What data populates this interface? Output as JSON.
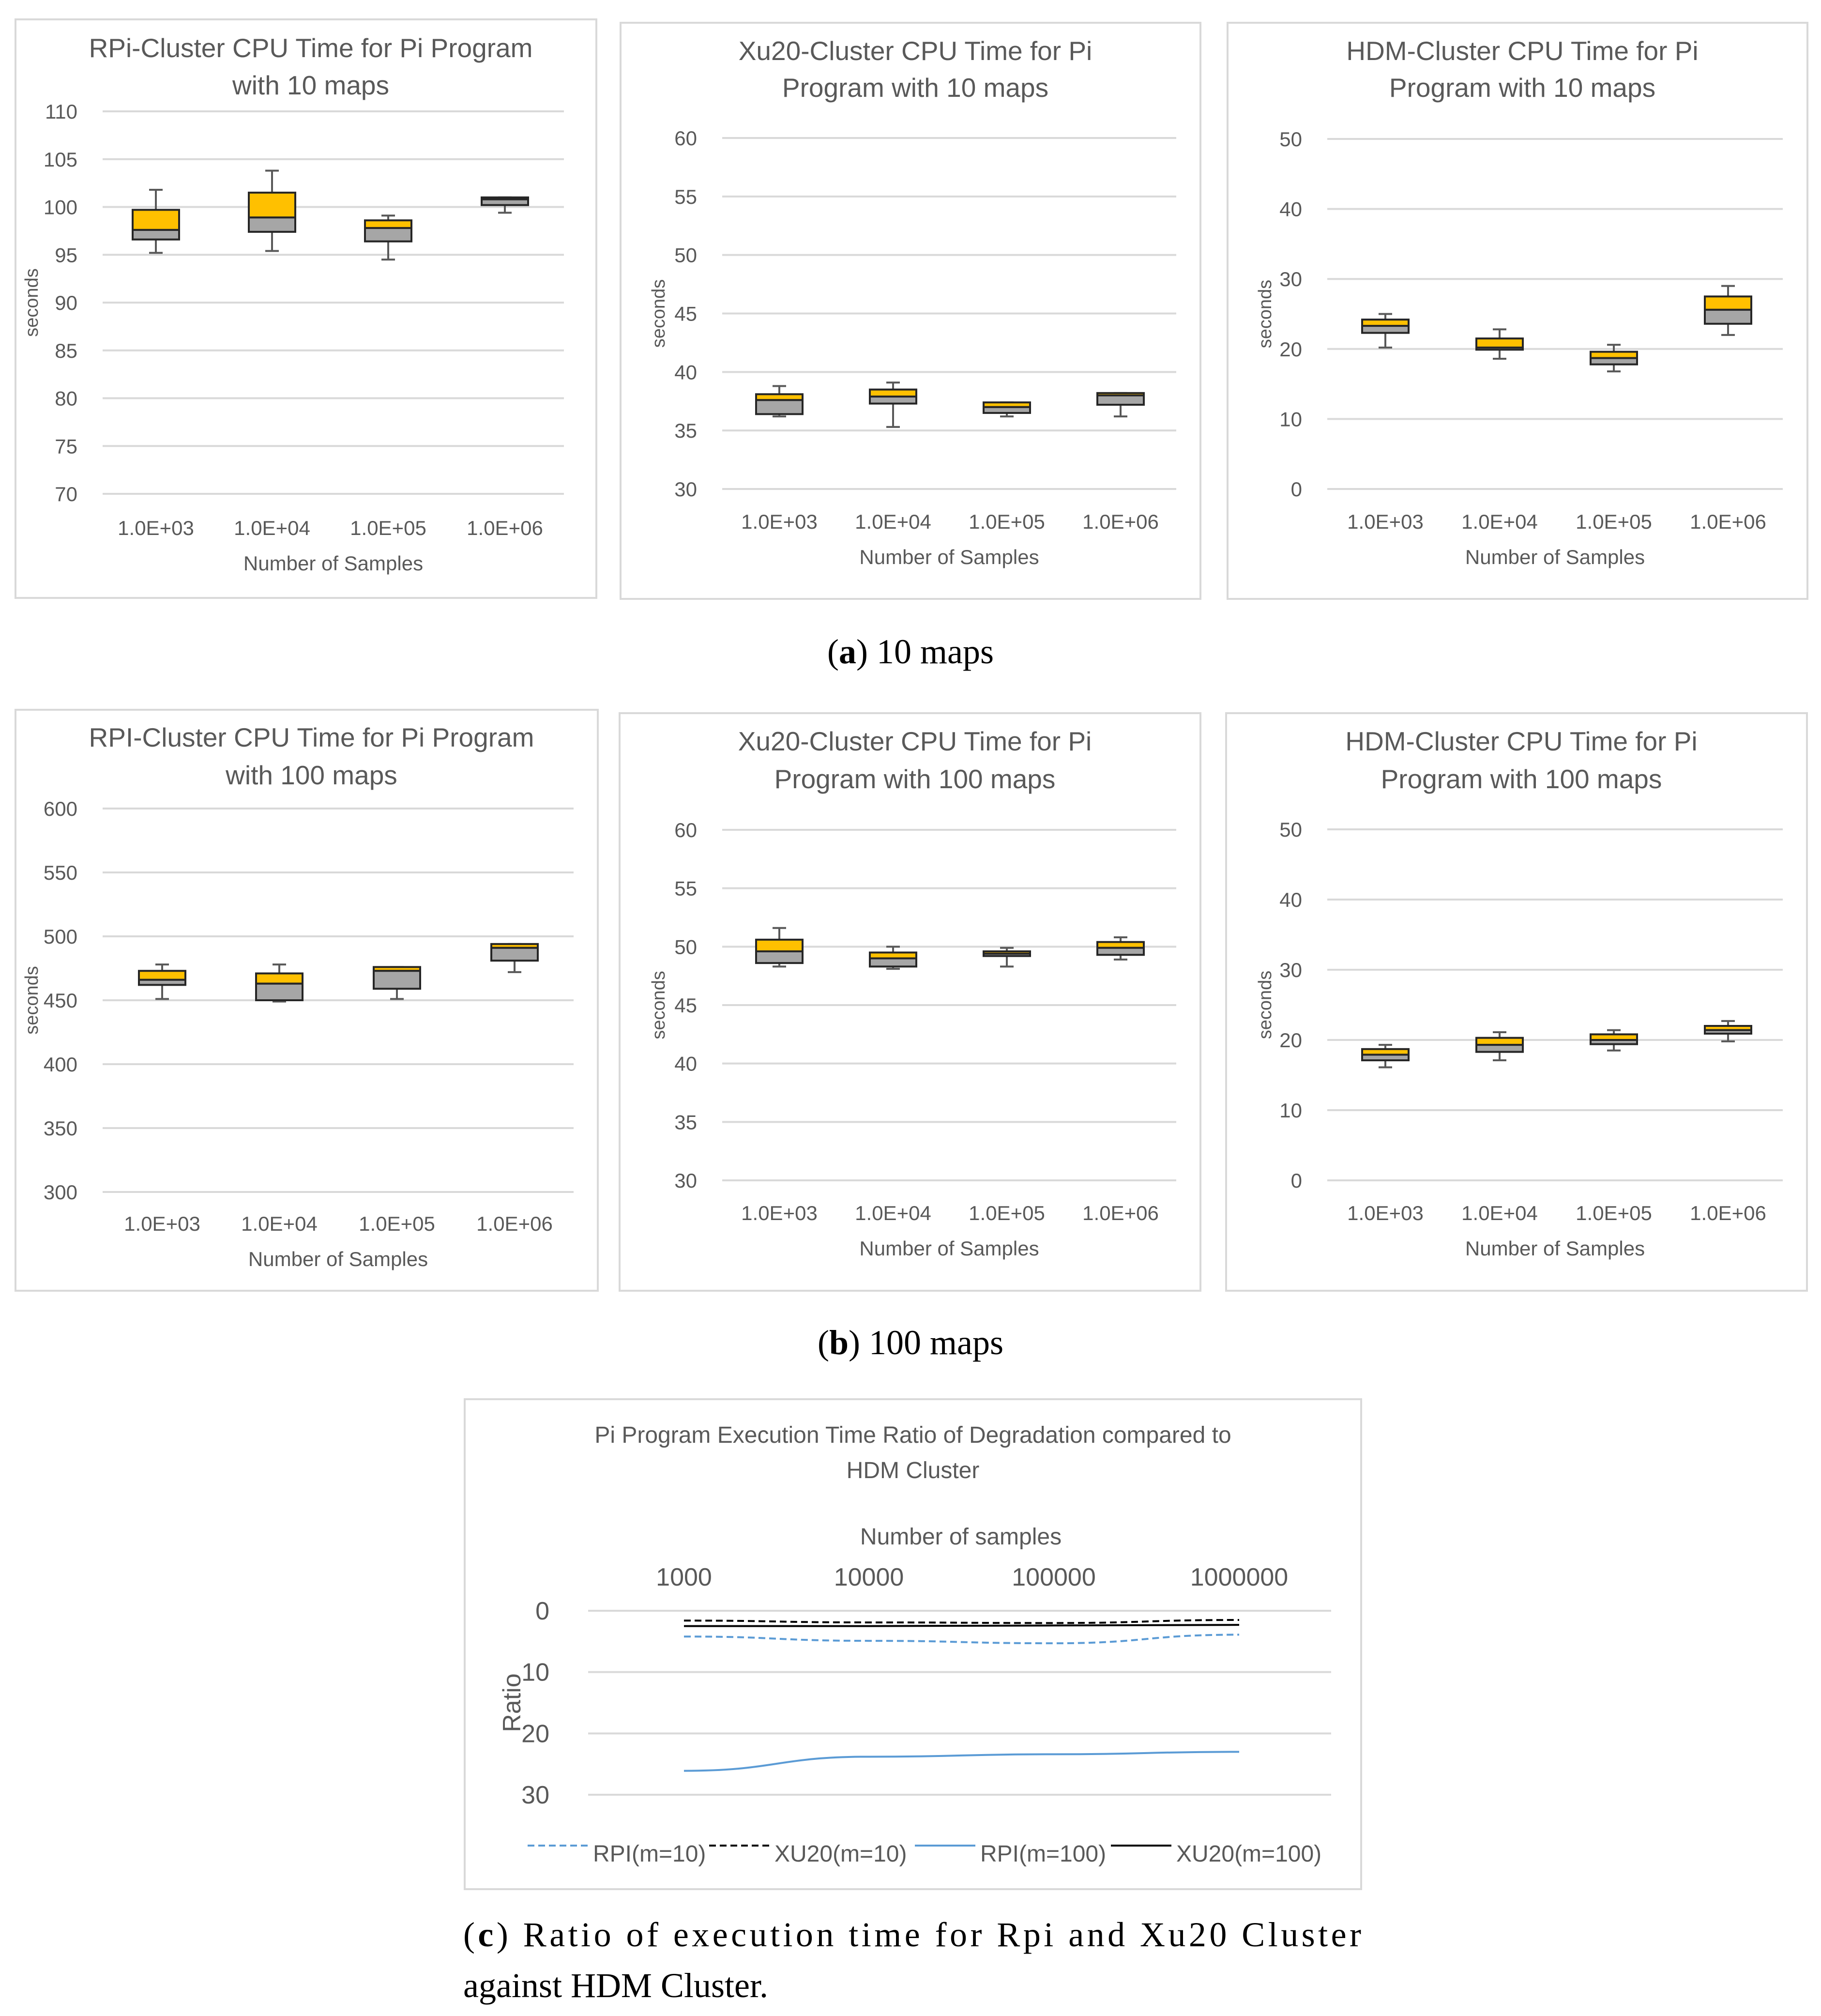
{
  "colors": {
    "q3_box": "#FFC000",
    "q2_box": "#A6A6A6",
    "whisker": "#595959",
    "grid": "#D9D9D9",
    "text": "#595959",
    "panel_border": "#D9D9D9",
    "rpi_line": "#5B9BD5",
    "xu20_line": "#000000"
  },
  "captions": {
    "a": {
      "letter": "a",
      "text": " 10 maps"
    },
    "b": {
      "letter": "b",
      "text": " 100 maps"
    },
    "c": {
      "letter": "c",
      "line1": " Ratio of execution time for Rpi and Xu20 Cluster",
      "line2": "against HDM Cluster."
    }
  },
  "chart_data": [
    {
      "id": "rpi10",
      "type": "box",
      "title": [
        "RPi-Cluster CPU Time for Pi Program",
        "with 10 maps"
      ],
      "xlabel": "Number of Samples",
      "ylabel": "seconds",
      "ylim": [
        70,
        110
      ],
      "yticks": [
        70,
        75,
        80,
        85,
        90,
        95,
        100,
        105,
        110
      ],
      "categories": [
        "1.0E+03",
        "1.0E+04",
        "1.0E+05",
        "1.0E+06"
      ],
      "boxes": [
        {
          "min": 95.2,
          "q1": 96.6,
          "median": 97.6,
          "q3": 99.7,
          "max": 101.8
        },
        {
          "min": 95.4,
          "q1": 97.4,
          "median": 98.9,
          "q3": 101.5,
          "max": 103.8
        },
        {
          "min": 94.5,
          "q1": 96.4,
          "median": 97.8,
          "q3": 98.6,
          "max": 99.1
        },
        {
          "min": 99.4,
          "q1": 100.2,
          "median": 100.8,
          "q3": 101.0,
          "max": 101.0
        }
      ]
    },
    {
      "id": "xu10",
      "type": "box",
      "title": [
        "Xu20-Cluster CPU Time for Pi",
        "Program with 10 maps"
      ],
      "xlabel": "Number of Samples",
      "ylabel": "seconds",
      "ylim": [
        30,
        60
      ],
      "yticks": [
        30,
        35,
        40,
        45,
        50,
        55,
        60
      ],
      "categories": [
        "1.0E+03",
        "1.0E+04",
        "1.0E+05",
        "1.0E+06"
      ],
      "boxes": [
        {
          "min": 36.2,
          "q1": 36.4,
          "median": 37.6,
          "q3": 38.1,
          "max": 38.8
        },
        {
          "min": 35.3,
          "q1": 37.3,
          "median": 37.9,
          "q3": 38.5,
          "max": 39.1
        },
        {
          "min": 36.2,
          "q1": 36.5,
          "median": 37.0,
          "q3": 37.4,
          "max": 37.4
        },
        {
          "min": 36.2,
          "q1": 37.2,
          "median": 38.0,
          "q3": 38.2,
          "max": 38.2
        }
      ]
    },
    {
      "id": "hdm10",
      "type": "box",
      "title": [
        "HDM-Cluster CPU Time for Pi",
        "Program with 10 maps"
      ],
      "xlabel": "Number of Samples",
      "ylabel": "seconds",
      "ylim": [
        0,
        50
      ],
      "yticks": [
        0,
        10,
        20,
        30,
        40,
        50
      ],
      "categories": [
        "1.0E+03",
        "1.0E+04",
        "1.0E+05",
        "1.0E+06"
      ],
      "boxes": [
        {
          "min": 20.2,
          "q1": 22.3,
          "median": 23.3,
          "q3": 24.2,
          "max": 25.0
        },
        {
          "min": 18.6,
          "q1": 19.9,
          "median": 20.2,
          "q3": 21.5,
          "max": 22.8
        },
        {
          "min": 16.8,
          "q1": 17.8,
          "median": 18.7,
          "q3": 19.6,
          "max": 20.6
        },
        {
          "min": 22.0,
          "q1": 23.6,
          "median": 25.6,
          "q3": 27.5,
          "max": 29.0
        }
      ]
    },
    {
      "id": "rpi100",
      "type": "box",
      "title": [
        "RPI-Cluster CPU Time for Pi Program",
        "with 100 maps"
      ],
      "xlabel": "Number of Samples",
      "ylabel": "seconds",
      "ylim": [
        300,
        600
      ],
      "yticks": [
        300,
        350,
        400,
        450,
        500,
        550,
        600
      ],
      "categories": [
        "1.0E+03",
        "1.0E+04",
        "1.0E+05",
        "1.0E+06"
      ],
      "boxes": [
        {
          "min": 451,
          "q1": 462,
          "median": 466,
          "q3": 473,
          "max": 478
        },
        {
          "min": 449,
          "q1": 450,
          "median": 463,
          "q3": 471,
          "max": 478
        },
        {
          "min": 451,
          "q1": 459,
          "median": 473,
          "q3": 476,
          "max": 476
        },
        {
          "min": 472,
          "q1": 481,
          "median": 491,
          "q3": 494,
          "max": 494
        }
      ]
    },
    {
      "id": "xu100",
      "type": "box",
      "title": [
        "Xu20-Cluster CPU Time for Pi",
        "Program with 100 maps"
      ],
      "xlabel": "Number of Samples",
      "ylabel": "seconds",
      "ylim": [
        30,
        60
      ],
      "yticks": [
        30,
        35,
        40,
        45,
        50,
        55,
        60
      ],
      "categories": [
        "1.0E+03",
        "1.0E+04",
        "1.0E+05",
        "1.0E+06"
      ],
      "boxes": [
        {
          "min": 48.3,
          "q1": 48.6,
          "median": 49.6,
          "q3": 50.6,
          "max": 51.6
        },
        {
          "min": 48.1,
          "q1": 48.3,
          "median": 49.0,
          "q3": 49.5,
          "max": 50.0
        },
        {
          "min": 48.3,
          "q1": 49.2,
          "median": 49.4,
          "q3": 49.6,
          "max": 49.9
        },
        {
          "min": 48.9,
          "q1": 49.3,
          "median": 49.9,
          "q3": 50.4,
          "max": 50.8
        }
      ]
    },
    {
      "id": "hdm100",
      "type": "box",
      "title": [
        "HDM-Cluster CPU Time for Pi",
        "Program with 100 maps"
      ],
      "xlabel": "Number of Samples",
      "ylabel": "seconds",
      "ylim": [
        0,
        50
      ],
      "yticks": [
        0,
        10,
        20,
        30,
        40,
        50
      ],
      "categories": [
        "1.0E+03",
        "1.0E+04",
        "1.0E+05",
        "1.0E+06"
      ],
      "boxes": [
        {
          "min": 16.1,
          "q1": 17.1,
          "median": 17.9,
          "q3": 18.7,
          "max": 19.3
        },
        {
          "min": 17.1,
          "q1": 18.3,
          "median": 19.3,
          "q3": 20.3,
          "max": 21.1
        },
        {
          "min": 18.5,
          "q1": 19.4,
          "median": 20.0,
          "q3": 20.8,
          "max": 21.4
        },
        {
          "min": 19.8,
          "q1": 20.9,
          "median": 21.4,
          "q3": 22.0,
          "max": 22.7
        }
      ]
    },
    {
      "id": "ratio",
      "type": "line",
      "title": [
        "Pi Program Execution Time Ratio of Degradation compared to",
        "HDM Cluster"
      ],
      "xlabel": "Number of samples",
      "ylabel": "Ratio",
      "categories": [
        "1000",
        "10000",
        "100000",
        "1000000"
      ],
      "ylim": [
        0,
        30
      ],
      "yticks": [
        0,
        10,
        20,
        30
      ],
      "y_reversed": true,
      "legend_position": "bottom",
      "series": [
        {
          "name": "RPI(m=10)",
          "values": [
            4.2,
            4.9,
            5.3,
            3.9
          ],
          "color": "#5B9BD5",
          "dashed": true
        },
        {
          "name": "XU20(m=10)",
          "values": [
            1.6,
            1.9,
            2.0,
            1.5
          ],
          "color": "#000000",
          "dashed": true
        },
        {
          "name": "RPI(m=100)",
          "values": [
            26.1,
            23.8,
            23.4,
            23.0
          ],
          "color": "#5B9BD5",
          "dashed": false
        },
        {
          "name": "XU20(m=100)",
          "values": [
            2.5,
            2.5,
            2.4,
            2.3
          ],
          "color": "#000000",
          "dashed": false
        }
      ]
    }
  ]
}
